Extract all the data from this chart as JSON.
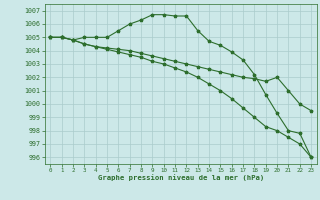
{
  "xlabel": "Graphe pression niveau de la mer (hPa)",
  "ylim": [
    995.5,
    1007.5
  ],
  "xlim": [
    -0.5,
    23.5
  ],
  "yticks": [
    996,
    997,
    998,
    999,
    1000,
    1001,
    1002,
    1003,
    1004,
    1005,
    1006,
    1007
  ],
  "xticks": [
    0,
    1,
    2,
    3,
    4,
    5,
    6,
    7,
    8,
    9,
    10,
    11,
    12,
    13,
    14,
    15,
    16,
    17,
    18,
    19,
    20,
    21,
    22,
    23
  ],
  "bg_color": "#cce8e8",
  "grid_color": "#aacccc",
  "line_color": "#2d6e2d",
  "line1": [
    1005.0,
    1005.0,
    1004.8,
    1005.0,
    1005.0,
    1005.0,
    1005.5,
    1006.0,
    1006.3,
    1006.7,
    1006.7,
    1006.6,
    1006.6,
    1005.5,
    1004.7,
    1004.4,
    1003.9,
    1003.3,
    1002.2,
    1000.7,
    999.3,
    998.0,
    997.8,
    996.0
  ],
  "line2": [
    1005.0,
    1005.0,
    1004.8,
    1004.5,
    1004.3,
    1004.2,
    1004.1,
    1004.0,
    1003.8,
    1003.6,
    1003.4,
    1003.2,
    1003.0,
    1002.8,
    1002.6,
    1002.4,
    1002.2,
    1002.0,
    1001.9,
    1001.7,
    1002.0,
    1001.0,
    1000.0,
    999.5
  ],
  "line3": [
    1005.0,
    1005.0,
    1004.8,
    1004.5,
    1004.3,
    1004.1,
    1003.9,
    1003.7,
    1003.5,
    1003.2,
    1003.0,
    1002.7,
    1002.4,
    1002.0,
    1001.5,
    1001.0,
    1000.4,
    999.7,
    999.0,
    998.3,
    998.0,
    997.5,
    997.0,
    996.0
  ]
}
